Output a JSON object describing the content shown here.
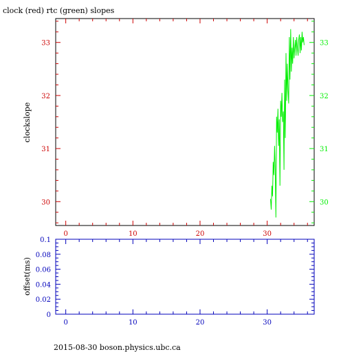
{
  "header": {
    "title": "clock (red) rtc (green) slopes"
  },
  "footer": {
    "caption": "2015-08-30  boson.physics.ubc.ca"
  },
  "colors": {
    "clock": "#cc0000",
    "rtc": "#00ee00",
    "offset": "#0000bb",
    "frame": "#000000"
  },
  "chart_data": [
    {
      "type": "line",
      "ylabel": "clockslope",
      "xlim": [
        -1.5,
        37
      ],
      "ylim": [
        29.55,
        33.45
      ],
      "x_ticks": [
        0,
        10,
        20,
        30
      ],
      "y_ticks": [
        30,
        31,
        32,
        33
      ],
      "left_tick_color": "clock",
      "right_tick_color": "rtc",
      "series": [
        {
          "color": "rtc",
          "x": [
            30.5,
            30.6,
            30.7,
            30.8,
            30.9,
            31.0,
            31.1,
            31.2,
            31.3,
            31.4,
            31.5,
            31.6,
            31.7,
            31.8,
            31.9,
            32.0,
            32.1,
            32.2,
            32.3,
            32.4,
            32.5,
            32.6,
            32.7,
            32.8,
            32.9,
            33.0,
            33.1,
            33.2,
            33.3,
            33.4,
            33.5,
            33.6,
            33.7,
            33.8,
            33.9,
            34.0,
            34.1,
            34.2,
            34.3,
            34.4,
            34.5,
            34.6,
            34.7,
            34.8,
            34.9,
            35.0,
            35.1,
            35.2,
            35.3,
            35.4,
            35.5
          ],
          "y": [
            30.05,
            29.85,
            30.3,
            30.1,
            30.75,
            30.5,
            31.05,
            30.6,
            29.7,
            31.6,
            31.3,
            31.75,
            31.05,
            31.55,
            30.3,
            31.9,
            31.6,
            32.05,
            31.5,
            31.7,
            30.6,
            32.3,
            31.2,
            32.8,
            31.9,
            32.6,
            32.1,
            31.85,
            33.1,
            32.3,
            33.25,
            32.45,
            32.9,
            32.6,
            33.1,
            32.7,
            32.9,
            33.05,
            32.75,
            33.1,
            32.9,
            32.75,
            33.05,
            33.15,
            32.8,
            33.1,
            32.85,
            33.2,
            33.0,
            33.1,
            32.95
          ]
        }
      ]
    },
    {
      "type": "line",
      "ylabel": "offset(ms)",
      "xlim": [
        -1.5,
        37
      ],
      "ylim": [
        0,
        0.1
      ],
      "x_ticks": [
        0,
        10,
        20,
        30
      ],
      "y_ticks": [
        0,
        0.02,
        0.04,
        0.06,
        0.08,
        0.1
      ],
      "y_tick_labels": [
        "0",
        "0.02",
        "0.04",
        "0.06",
        "0.08",
        "0.1"
      ],
      "series": []
    }
  ]
}
